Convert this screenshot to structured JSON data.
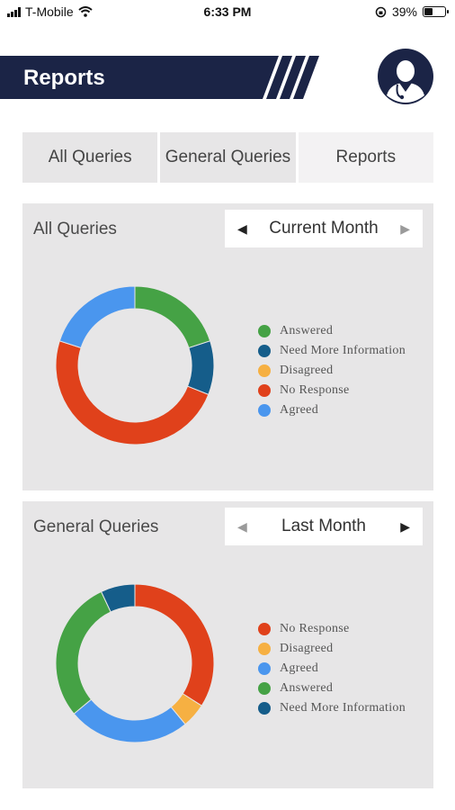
{
  "status_bar": {
    "carrier": "T-Mobile",
    "time": "6:33 PM",
    "battery": "39%",
    "battery_level": 0.39
  },
  "header": {
    "title": "Reports",
    "banner_color": "#1b2446"
  },
  "tabs": [
    {
      "label": "All Queries",
      "active": false
    },
    {
      "label": "General Queries",
      "active": false
    },
    {
      "label": "Reports",
      "active": true
    }
  ],
  "cards": [
    {
      "title": "All Queries",
      "period": "Current Month",
      "prev_enabled": true,
      "next_enabled": false,
      "chart_data": {
        "type": "pie",
        "series": [
          {
            "label": "Answered",
            "value": 20,
            "color": "#45a245"
          },
          {
            "label": "Need More Information",
            "value": 11,
            "color": "#155d8a"
          },
          {
            "label": "Disagreed",
            "value": 0,
            "color": "#f6b042"
          },
          {
            "label": "No Response",
            "value": 49,
            "color": "#e0411b"
          },
          {
            "label": "Agreed",
            "value": 20,
            "color": "#4a96ee"
          }
        ]
      }
    },
    {
      "title": "General Queries",
      "period": "Last Month",
      "prev_enabled": false,
      "next_enabled": true,
      "chart_data": {
        "type": "pie",
        "series": [
          {
            "label": "No Response",
            "value": 34,
            "color": "#e0411b"
          },
          {
            "label": "Disagreed",
            "value": 5,
            "color": "#f6b042"
          },
          {
            "label": "Agreed",
            "value": 25,
            "color": "#4a96ee"
          },
          {
            "label": "Answered",
            "value": 29,
            "color": "#45a245"
          },
          {
            "label": "Need More Information",
            "value": 7,
            "color": "#155d8a"
          }
        ]
      }
    }
  ]
}
